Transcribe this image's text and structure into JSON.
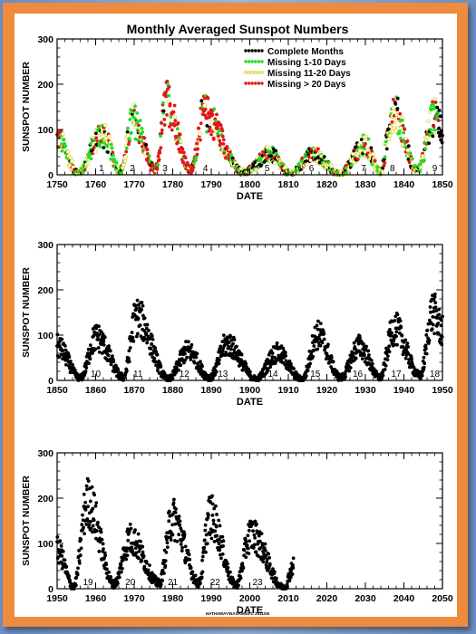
{
  "title": "Monthly Averaged Sunspot Numbers",
  "credit": "HATHAWAY/NASA/MSFC 2011/06",
  "legend": [
    {
      "label": "Complete Months",
      "color": "#000000",
      "fill": "#000000"
    },
    {
      "label": "Missing 1-10 Days",
      "color": "#22dd22",
      "fill": "#22dd22"
    },
    {
      "label": "Missing 11-20 Days",
      "color": "#d4c400",
      "fill": "none"
    },
    {
      "label": "Missing > 20 Days",
      "color": "#e01818",
      "fill": "#e01818"
    }
  ],
  "chart_data": [
    {
      "type": "scatter",
      "xlabel": "DATE",
      "ylabel": "SUNSPOT NUMBER",
      "xlim": [
        1750,
        1850
      ],
      "ylim": [
        0,
        300
      ],
      "xticks": [
        "1750",
        "1760",
        "1770",
        "1780",
        "1790",
        "1800",
        "1810",
        "1820",
        "1830",
        "1840",
        "1850"
      ],
      "yticks": [
        "0",
        "100",
        "200",
        "300"
      ],
      "cycles": [
        {
          "label": "1",
          "x": 1761.5
        },
        {
          "label": "2",
          "x": 1769.5
        },
        {
          "label": "3",
          "x": 1778
        },
        {
          "label": "4",
          "x": 1788.5
        },
        {
          "label": "5",
          "x": 1804.5
        },
        {
          "label": "6",
          "x": 1816
        },
        {
          "label": "7",
          "x": 1829.5
        },
        {
          "label": "8",
          "x": 1837
        },
        {
          "label": "9",
          "x": 1848
        }
      ],
      "peaks": [
        [
          1750.0,
          80
        ],
        [
          1755.5,
          5
        ],
        [
          1761.5,
          90
        ],
        [
          1766.5,
          10
        ],
        [
          1769.7,
          120
        ],
        [
          1775.5,
          10
        ],
        [
          1778.4,
          160
        ],
        [
          1784.7,
          10
        ],
        [
          1788.1,
          135
        ],
        [
          1798.3,
          5
        ],
        [
          1805.2,
          45
        ],
        [
          1810.6,
          2
        ],
        [
          1816.4,
          45
        ],
        [
          1823.3,
          2
        ],
        [
          1829.9,
          65
        ],
        [
          1833.9,
          7
        ],
        [
          1837.2,
          140
        ],
        [
          1843.5,
          10
        ],
        [
          1848.1,
          130
        ],
        [
          1850.0,
          95
        ]
      ]
    },
    {
      "type": "scatter",
      "xlabel": "DATE",
      "ylabel": "SUNSPOT NUMBER",
      "xlim": [
        1850,
        1950
      ],
      "ylim": [
        0,
        300
      ],
      "xticks": [
        "1850",
        "1860",
        "1870",
        "1880",
        "1890",
        "1900",
        "1910",
        "1920",
        "1930",
        "1940",
        "1950"
      ],
      "yticks": [
        "0",
        "100",
        "200",
        "300"
      ],
      "cycles": [
        {
          "label": "10",
          "x": 1860
        },
        {
          "label": "11",
          "x": 1871
        },
        {
          "label": "12",
          "x": 1883
        },
        {
          "label": "13",
          "x": 1893
        },
        {
          "label": "14",
          "x": 1906
        },
        {
          "label": "15",
          "x": 1917
        },
        {
          "label": "16",
          "x": 1928
        },
        {
          "label": "17",
          "x": 1938
        },
        {
          "label": "18",
          "x": 1948
        }
      ],
      "peaks": [
        [
          1850.0,
          75
        ],
        [
          1856.0,
          5
        ],
        [
          1860.1,
          95
        ],
        [
          1867.2,
          7
        ],
        [
          1870.6,
          140
        ],
        [
          1878.9,
          3
        ],
        [
          1883.9,
          65
        ],
        [
          1889.6,
          6
        ],
        [
          1894.1,
          80
        ],
        [
          1901.7,
          3
        ],
        [
          1907.0,
          60
        ],
        [
          1913.6,
          2
        ],
        [
          1917.6,
          100
        ],
        [
          1923.6,
          6
        ],
        [
          1928.4,
          75
        ],
        [
          1933.8,
          6
        ],
        [
          1937.4,
          115
        ],
        [
          1944.2,
          10
        ],
        [
          1947.5,
          150
        ],
        [
          1950.0,
          110
        ]
      ]
    },
    {
      "type": "scatter",
      "xlabel": "DATE",
      "ylabel": "SUNSPOT NUMBER",
      "xlim": [
        1950,
        2050
      ],
      "ylim": [
        0,
        300
      ],
      "xticks": [
        "1950",
        "1960",
        "1970",
        "1980",
        "1990",
        "2000",
        "2010",
        "2020",
        "2030",
        "2040",
        "2050"
      ],
      "yticks": [
        "0",
        "100",
        "200",
        "300"
      ],
      "cycles": [
        {
          "label": "19",
          "x": 1958
        },
        {
          "label": "20",
          "x": 1969
        },
        {
          "label": "21",
          "x": 1980
        },
        {
          "label": "22",
          "x": 1991
        },
        {
          "label": "23",
          "x": 2002
        }
      ],
      "peaks": [
        [
          1950.0,
          85
        ],
        [
          1954.3,
          4
        ],
        [
          1957.9,
          190
        ],
        [
          1964.8,
          10
        ],
        [
          1968.9,
          110
        ],
        [
          1976.5,
          12
        ],
        [
          1979.9,
          155
        ],
        [
          1986.8,
          13
        ],
        [
          1989.6,
          160
        ],
        [
          1996.4,
          8
        ],
        [
          2000.3,
          120
        ],
        [
          2008.9,
          2
        ],
        [
          2011.4,
          50
        ]
      ]
    }
  ]
}
